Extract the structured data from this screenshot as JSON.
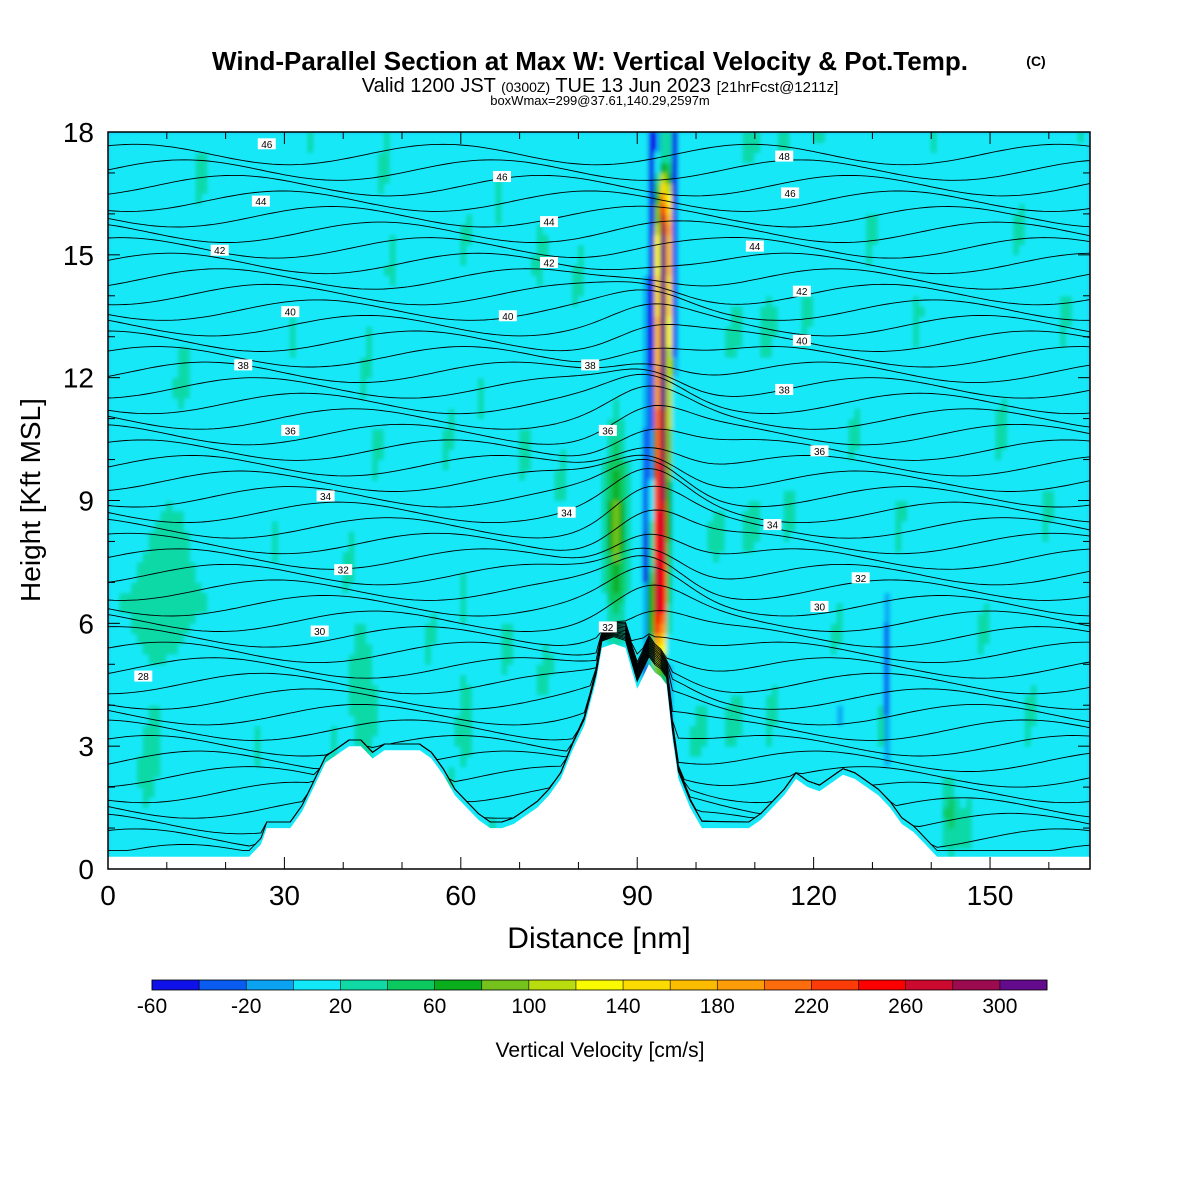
{
  "chart_data": {
    "type": "heatmap",
    "title": "Wind-Parallel Section at Max W: Vertical Velocity & Pot.Temp.",
    "title_mark": "(C)",
    "subtitle": {
      "part1": "Valid 1200 JST",
      "part2": "(0300Z)",
      "part3": "TUE 13 Jun 2023",
      "part4": "[21hrFcst@1211z]"
    },
    "info": "boxWmax=299@37.61,140.29,2597m",
    "xlabel": "Distance [nm]",
    "ylabel": "Height [Kft MSL]",
    "xlim": [
      0,
      167
    ],
    "ylim": [
      0,
      18
    ],
    "x_ticks": [
      0,
      30,
      60,
      90,
      120,
      150
    ],
    "y_ticks": [
      0,
      3,
      6,
      9,
      12,
      15,
      18
    ],
    "grid": false,
    "colorbar": {
      "label": "Vertical Velocity [cm/s]",
      "tick_labels": [
        -60,
        -20,
        20,
        60,
        100,
        140,
        180,
        220,
        260,
        300
      ],
      "levels": [
        -60,
        -40,
        -20,
        0,
        20,
        40,
        60,
        80,
        100,
        120,
        140,
        160,
        180,
        200,
        220,
        240,
        260,
        280,
        300,
        320
      ],
      "colors": [
        "#1010e8",
        "#0a5cf0",
        "#0ba2f2",
        "#12e8f8",
        "#10d9a6",
        "#0bc95f",
        "#0aae1c",
        "#76c21c",
        "#b8dc0e",
        "#fafa00",
        "#fcdc00",
        "#fcbc00",
        "#fc9c08",
        "#fc6c0c",
        "#fc3c08",
        "#fc0000",
        "#cc0a30",
        "#9c0a50",
        "#640a8c"
      ]
    },
    "terrain_profile": {
      "x": [
        0,
        24,
        26,
        27,
        29,
        31,
        33,
        35,
        37,
        39,
        41,
        43,
        45,
        47,
        50,
        53,
        55,
        57,
        59,
        61,
        63,
        65,
        67,
        69,
        71,
        73,
        75,
        77,
        79,
        81,
        83,
        84,
        86,
        88,
        89,
        90,
        91,
        92,
        93,
        94,
        95,
        96,
        97,
        99,
        101,
        103,
        105,
        107,
        109,
        111,
        113,
        115,
        117,
        119,
        121,
        123,
        125,
        127,
        129,
        131,
        133,
        135,
        137,
        139,
        141,
        143,
        167
      ],
      "height": [
        0.3,
        0.3,
        0.6,
        1.0,
        1.0,
        1.0,
        1.4,
        2.0,
        2.6,
        2.8,
        3.0,
        3.0,
        2.7,
        2.9,
        2.9,
        2.9,
        2.7,
        2.3,
        1.8,
        1.5,
        1.2,
        1.0,
        1.0,
        1.1,
        1.3,
        1.5,
        1.8,
        2.2,
        2.9,
        3.5,
        4.6,
        5.4,
        5.5,
        5.4,
        4.9,
        4.4,
        4.7,
        5.0,
        4.8,
        4.7,
        4.5,
        3.2,
        2.2,
        1.5,
        1.0,
        1.0,
        1.0,
        1.0,
        1.0,
        1.2,
        1.5,
        1.8,
        2.2,
        2.0,
        1.9,
        2.1,
        2.3,
        2.2,
        2.0,
        1.8,
        1.5,
        1.1,
        0.9,
        0.6,
        0.3,
        0.3,
        0.3
      ]
    },
    "theta_contours": [
      {
        "label": "28",
        "x": 6,
        "y": 4.7
      },
      {
        "label": "30",
        "x": 36,
        "y": 5.8
      },
      {
        "label": "32",
        "x": 40,
        "y": 7.3
      },
      {
        "label": "34",
        "x": 37,
        "y": 9.1
      },
      {
        "label": "36",
        "x": 31,
        "y": 10.7
      },
      {
        "label": "38",
        "x": 23,
        "y": 12.3
      },
      {
        "label": "40",
        "x": 31,
        "y": 13.6
      },
      {
        "label": "42",
        "x": 19,
        "y": 15.1
      },
      {
        "label": "44",
        "x": 26,
        "y": 16.3
      },
      {
        "label": "46",
        "x": 27,
        "y": 17.7
      },
      {
        "label": "32",
        "x": 85,
        "y": 5.9
      },
      {
        "label": "34",
        "x": 78,
        "y": 8.7
      },
      {
        "label": "36",
        "x": 85,
        "y": 10.7
      },
      {
        "label": "38",
        "x": 82,
        "y": 12.3
      },
      {
        "label": "40",
        "x": 68,
        "y": 13.5
      },
      {
        "label": "42",
        "x": 75,
        "y": 14.8
      },
      {
        "label": "44",
        "x": 75,
        "y": 15.8
      },
      {
        "label": "46",
        "x": 67,
        "y": 16.9
      },
      {
        "label": "30",
        "x": 121,
        "y": 6.4
      },
      {
        "label": "32",
        "x": 128,
        "y": 7.1
      },
      {
        "label": "34",
        "x": 113,
        "y": 8.4
      },
      {
        "label": "36",
        "x": 121,
        "y": 10.2
      },
      {
        "label": "38",
        "x": 115,
        "y": 11.7
      },
      {
        "label": "40",
        "x": 118,
        "y": 12.9
      },
      {
        "label": "42",
        "x": 118,
        "y": 14.1
      },
      {
        "label": "44",
        "x": 110,
        "y": 15.2
      },
      {
        "label": "46",
        "x": 116,
        "y": 16.5
      },
      {
        "label": "48",
        "x": 115,
        "y": 17.4
      }
    ]
  }
}
